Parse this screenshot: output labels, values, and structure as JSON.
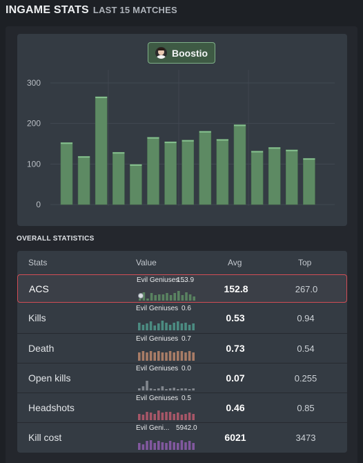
{
  "header": {
    "title": "INGAME STATS",
    "subtitle": "LAST 15 MATCHES"
  },
  "player": {
    "name": "Boostio"
  },
  "chart_data": {
    "type": "bar",
    "title": "",
    "xlabel": "",
    "ylabel": "",
    "ylim": [
      0,
      300
    ],
    "yticks": [
      0,
      100,
      200,
      300
    ],
    "series": [
      {
        "values": [
          153,
          119,
          266,
          129,
          99,
          166,
          155,
          159,
          181,
          161,
          197,
          132,
          141,
          135,
          114
        ]
      }
    ],
    "colors": {
      "bar": "#5d8a63",
      "bar_top": "#86c08f",
      "grid": "#414952"
    }
  },
  "section_title": "OVERALL STATISTICS",
  "table": {
    "headers": {
      "stats": "Stats",
      "value": "Value",
      "avg": "Avg",
      "top": "Top"
    },
    "rows": [
      {
        "name": "ACS",
        "team": "Evil Geniuses ...",
        "value": "153.9",
        "avg": "152.8",
        "top": "267.0",
        "color": "#5d8a63",
        "spark": [
          2,
          8,
          2,
          7,
          5,
          6,
          6,
          7,
          5,
          7,
          9,
          5,
          8,
          6,
          4
        ],
        "highlight": true
      },
      {
        "name": "Kills",
        "team": "Evil Geniuses",
        "value": "0.6",
        "avg": "0.53",
        "top": "0.94",
        "color": "#4e9588",
        "spark": [
          8,
          6,
          7,
          9,
          5,
          7,
          10,
          8,
          6,
          8,
          9,
          7,
          8,
          6,
          7
        ]
      },
      {
        "name": "Death",
        "team": "Evil Geniuses",
        "value": "0.7",
        "avg": "0.73",
        "top": "0.54",
        "color": "#b5846a",
        "spark": [
          8,
          9,
          8,
          9,
          8,
          9,
          8,
          8,
          9,
          8,
          9,
          9,
          8,
          9,
          8
        ]
      },
      {
        "name": "Open kills",
        "team": "Evil Geniuses",
        "value": "0.0",
        "avg": "0.07",
        "top": "0.255",
        "color": "#8a8f96",
        "spark": [
          2,
          4,
          10,
          2,
          1,
          2,
          4,
          1,
          2,
          3,
          1,
          2,
          2,
          1,
          2
        ]
      },
      {
        "name": "Headshots",
        "team": "Evil Geniuses",
        "value": "0.5",
        "avg": "0.46",
        "top": "0.85",
        "color": "#b25a6c",
        "spark": [
          6,
          5,
          8,
          7,
          6,
          9,
          7,
          8,
          8,
          6,
          7,
          5,
          6,
          7,
          6
        ]
      },
      {
        "name": "Kill cost",
        "team": "Evil Geni...",
        "value": "5942.0",
        "avg": "6021",
        "top": "3473",
        "color": "#8a5ca8",
        "spark": [
          7,
          6,
          9,
          10,
          7,
          9,
          8,
          7,
          9,
          8,
          7,
          10,
          8,
          9,
          7
        ]
      }
    ]
  }
}
